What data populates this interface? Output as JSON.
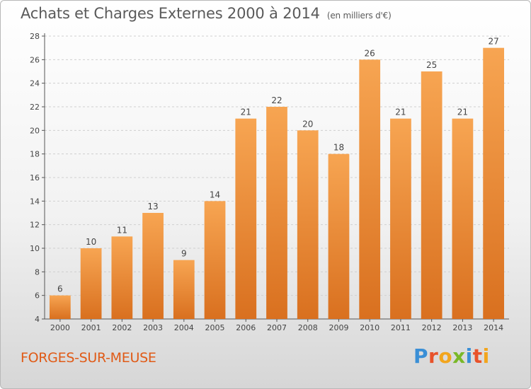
{
  "chart_data": {
    "type": "bar",
    "title": "Achats et Charges Externes 2000 à 2014",
    "subtitle": "(en milliers d'€)",
    "categories": [
      "2000",
      "2001",
      "2002",
      "2003",
      "2004",
      "2005",
      "2006",
      "2007",
      "2008",
      "2009",
      "2010",
      "2011",
      "2012",
      "2013",
      "2014"
    ],
    "values": [
      6,
      10,
      11,
      13,
      9,
      14,
      21,
      22,
      20,
      18,
      26,
      21,
      25,
      21,
      27
    ],
    "ylim": [
      4,
      28
    ],
    "yticks": [
      4,
      6,
      8,
      10,
      12,
      14,
      16,
      18,
      20,
      22,
      24,
      26,
      28
    ],
    "grid": true,
    "bar_color_top": "#f7a552",
    "bar_color_bottom": "#d9701f"
  },
  "footer": {
    "town": "FORGES-SUR-MEUSE",
    "town_color": "#e05a16"
  },
  "logo": {
    "letters": [
      {
        "ch": "P",
        "color": "#3a8fd6"
      },
      {
        "ch": "r",
        "color": "#e8522a"
      },
      {
        "ch": "o",
        "color": "#f2a51d"
      },
      {
        "ch": "x",
        "color": "#7ab828"
      },
      {
        "ch": "i",
        "color": "#3a8fd6"
      },
      {
        "ch": "t",
        "color": "#e8522a"
      },
      {
        "ch": "i",
        "color": "#f2a51d"
      }
    ]
  }
}
